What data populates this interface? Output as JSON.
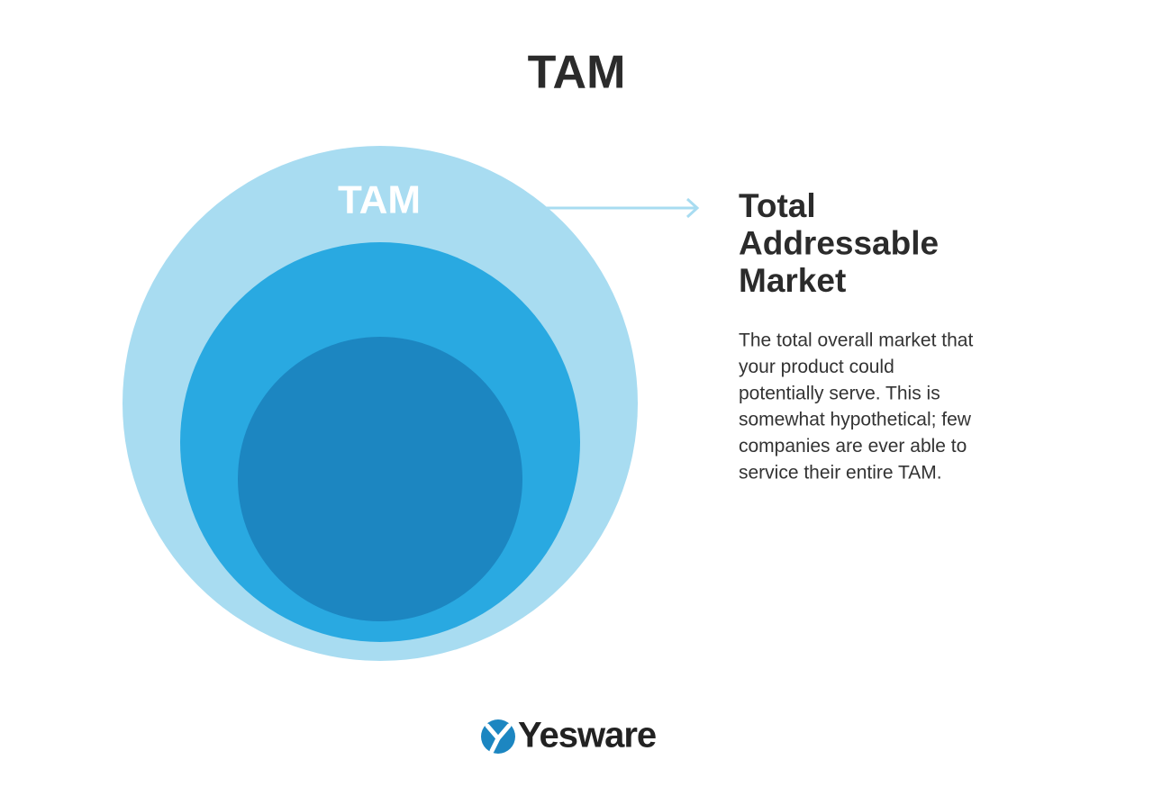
{
  "title": "TAM",
  "diagram": {
    "circle_label": "TAM"
  },
  "definition": {
    "heading": [
      "Total",
      "Addressable",
      "Market"
    ],
    "description": [
      "The total overall market that",
      "your product could",
      "potentially serve. This is",
      "somewhat hypothetical; few",
      "companies are ever able to",
      "service their entire TAM."
    ]
  },
  "footer": {
    "logo": "Yesware"
  }
}
